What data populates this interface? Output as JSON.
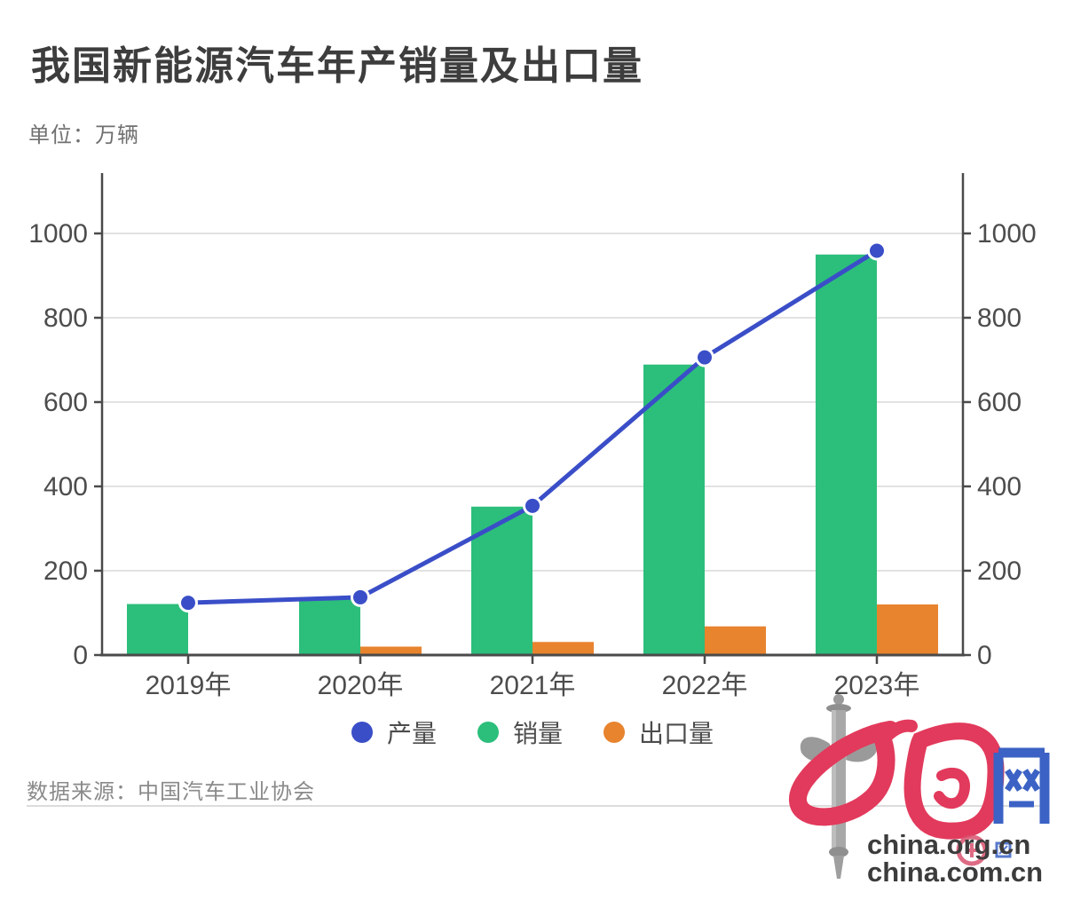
{
  "page": {
    "title": "我国新能源汽车年产销量及出口量",
    "unit_label": "单位：万辆",
    "source_label": "数据来源：中国汽车工业协会"
  },
  "colors": {
    "production_blue": "#3a4ec8",
    "sales_green": "#2cbe7b",
    "export_orange": "#e8832e",
    "axis_line": "#4a4a4a",
    "tick_text": "#4c4c4c",
    "grid": "#d9d9d9",
    "marker_stroke": "#ffffff",
    "logo_red": "#e23a5c",
    "logo_blue": "#3b62c4",
    "logo_gray": "#a0a0a0"
  },
  "legend": [
    {
      "label": "产量",
      "color": "#3a4ec8"
    },
    {
      "label": "销量",
      "color": "#2cbe7b"
    },
    {
      "label": "出口量",
      "color": "#e8832e"
    }
  ],
  "logo": {
    "line1": "china.org.cn",
    "line2": "china.com.cn"
  },
  "chart_data": {
    "type": "combo-bar-line",
    "title": "我国新能源汽车年产销量及出口量",
    "unit": "万辆",
    "categories": [
      "2019年",
      "2020年",
      "2021年",
      "2022年",
      "2023年"
    ],
    "series": [
      {
        "name": "产量",
        "type": "line",
        "color": "#3a4ec8",
        "values": [
          124,
          137,
          354,
          706,
          959
        ]
      },
      {
        "name": "销量",
        "type": "bar",
        "color": "#2cbe7b",
        "values": [
          121,
          137,
          352,
          689,
          950
        ]
      },
      {
        "name": "出口量",
        "type": "bar",
        "color": "#e8832e",
        "values": [
          0,
          20,
          31,
          68,
          120
        ]
      }
    ],
    "y_ticks": [
      0,
      200,
      400,
      600,
      800,
      1000
    ],
    "ylim": [
      0,
      1140
    ],
    "dual_axis": true,
    "grid": true,
    "legend_position": "bottom"
  }
}
